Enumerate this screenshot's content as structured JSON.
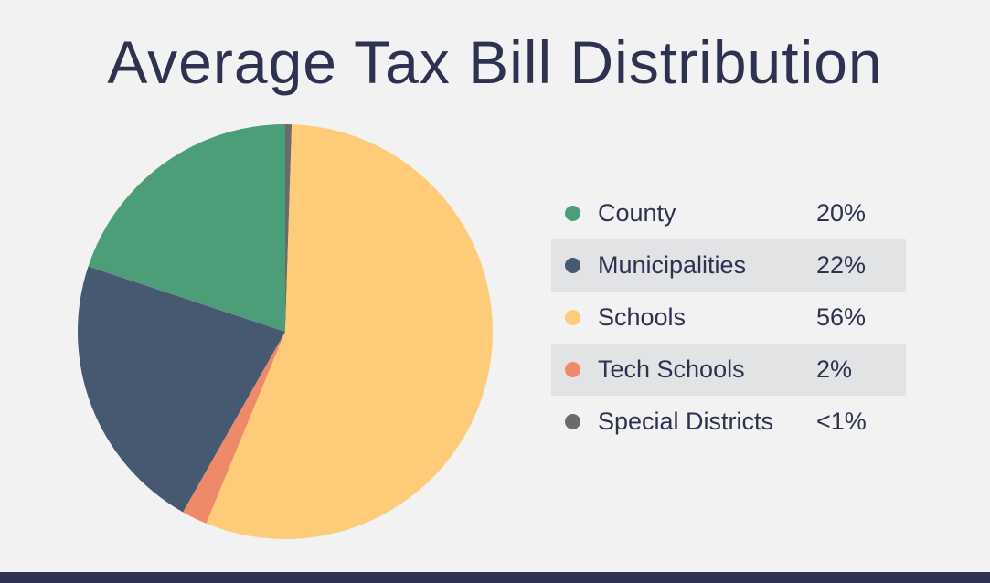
{
  "chart_data": {
    "type": "pie",
    "title": "Average Tax Bill Distribution",
    "legend_position": "right",
    "slices": [
      {
        "label": "County",
        "value": 20,
        "display": "20%",
        "color": "#4c9e78"
      },
      {
        "label": "Municipalities",
        "value": 22,
        "display": "22%",
        "color": "#475970"
      },
      {
        "label": "Schools",
        "value": 56,
        "display": "56%",
        "color": "#fecb78"
      },
      {
        "label": "Tech Schools",
        "value": 2,
        "display": "2%",
        "color": "#ef8a68"
      },
      {
        "label": "Special Districts",
        "value": 0.5,
        "display": "<1%",
        "color": "#6b6b6b"
      }
    ],
    "draw_order_clockwise_from_top": [
      "Special Districts",
      "Schools",
      "Tech Schools",
      "Municipalities",
      "County"
    ]
  }
}
